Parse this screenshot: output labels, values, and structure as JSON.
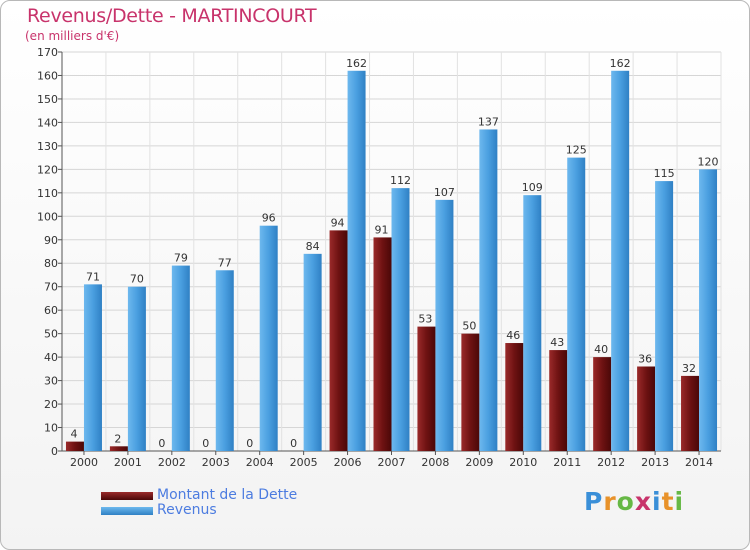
{
  "title": "Revenus/Dette - MARTINCOURT",
  "subtitle": "(en milliers d'€)",
  "logo": {
    "letters": [
      "P",
      "r",
      "o",
      "x",
      "i",
      "t",
      "i"
    ],
    "colors": [
      "#3a8fd8",
      "#e8922a",
      "#66b845",
      "#c8336b",
      "#3a8fd8",
      "#e8922a",
      "#66b845"
    ]
  },
  "legend": [
    {
      "label": "Montant de la Dette",
      "color": "#7a1a1a"
    },
    {
      "label": "Revenus",
      "color": "#4a9fe0"
    }
  ],
  "chart_data": {
    "type": "bar",
    "title": "Revenus/Dette - MARTINCOURT",
    "subtitle": "(en milliers d'€)",
    "categories": [
      "2000",
      "2001",
      "2002",
      "2003",
      "2004",
      "2005",
      "2006",
      "2007",
      "2008",
      "2009",
      "2010",
      "2011",
      "2012",
      "2013",
      "2014"
    ],
    "series": [
      {
        "name": "Montant de la Dette",
        "color": "#7a1a1a",
        "values": [
          4,
          2,
          0,
          0,
          0,
          0,
          94,
          91,
          53,
          50,
          46,
          43,
          40,
          36,
          32
        ]
      },
      {
        "name": "Revenus",
        "color": "#4a9fe0",
        "values": [
          71,
          70,
          79,
          77,
          96,
          84,
          162,
          112,
          107,
          137,
          109,
          125,
          162,
          115,
          120
        ]
      }
    ],
    "ylim": [
      0,
      170
    ],
    "yticks": [
      0,
      10,
      20,
      30,
      40,
      50,
      60,
      70,
      80,
      90,
      100,
      110,
      120,
      130,
      140,
      150,
      160,
      170
    ],
    "grid": true,
    "legend_position": "bottom-left"
  }
}
